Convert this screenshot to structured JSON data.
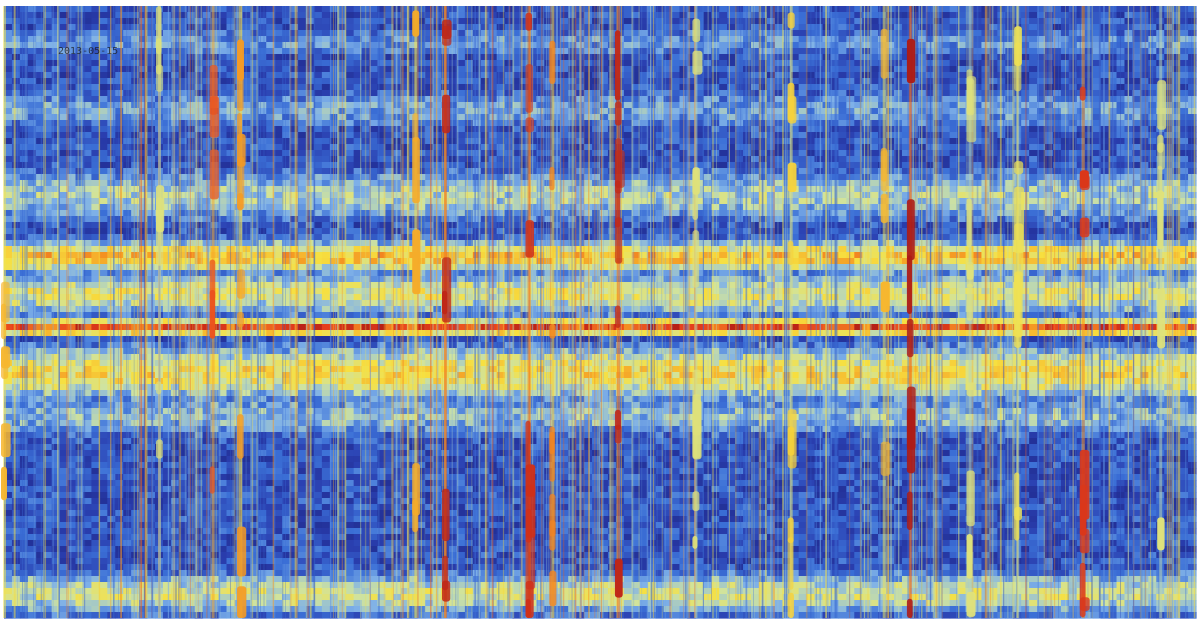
{
  "chart_data": {
    "type": "heatmap",
    "title": "",
    "xlabel": "",
    "ylabel": "",
    "timestamp_label": "2013-05-15",
    "colormap": [
      "#1a1f7a",
      "#2a3fb0",
      "#3b6fd6",
      "#7fb1e8",
      "#cfe3a0",
      "#f7e040",
      "#f59a23",
      "#e8401c",
      "#a31414"
    ],
    "colormap_name": "jet",
    "background_level": 0.18,
    "horizontal_bands": [
      {
        "center": 0.06,
        "width": 0.03,
        "level": 0.32
      },
      {
        "center": 0.17,
        "width": 0.04,
        "level": 0.34
      },
      {
        "center": 0.31,
        "width": 0.05,
        "level": 0.45
      },
      {
        "center": 0.41,
        "width": 0.03,
        "level": 0.68
      },
      {
        "center": 0.47,
        "width": 0.04,
        "level": 0.55
      },
      {
        "center": 0.525,
        "width": 0.015,
        "level": 0.86
      },
      {
        "center": 0.6,
        "width": 0.05,
        "level": 0.62
      },
      {
        "center": 0.67,
        "width": 0.04,
        "level": 0.4
      },
      {
        "center": 0.96,
        "width": 0.04,
        "level": 0.52
      }
    ],
    "vertical_streaks": [
      {
        "x": 0.0,
        "level": 0.7
      },
      {
        "x": 0.13,
        "level": 0.55
      },
      {
        "x": 0.175,
        "level": 0.85
      },
      {
        "x": 0.198,
        "level": 0.75
      },
      {
        "x": 0.345,
        "level": 0.72
      },
      {
        "x": 0.37,
        "level": 0.95
      },
      {
        "x": 0.44,
        "level": 0.92
      },
      {
        "x": 0.46,
        "level": 0.78
      },
      {
        "x": 0.515,
        "level": 0.95
      },
      {
        "x": 0.58,
        "level": 0.55
      },
      {
        "x": 0.66,
        "level": 0.65
      },
      {
        "x": 0.738,
        "level": 0.7
      },
      {
        "x": 0.76,
        "level": 0.98
      },
      {
        "x": 0.81,
        "level": 0.55
      },
      {
        "x": 0.85,
        "level": 0.6
      },
      {
        "x": 0.905,
        "level": 0.9
      },
      {
        "x": 0.97,
        "level": 0.55
      }
    ]
  }
}
